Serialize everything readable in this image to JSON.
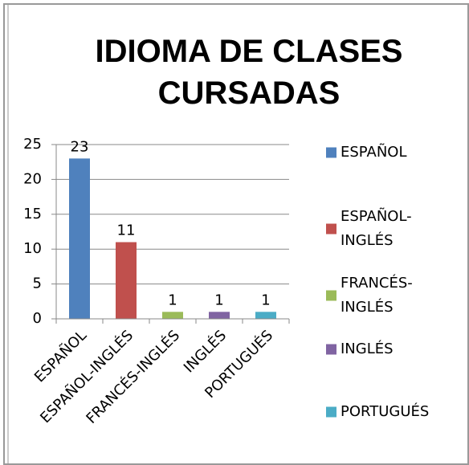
{
  "chart_data": {
    "type": "bar",
    "title": "IDIOMA DE CLASES CURSADAS",
    "categories": [
      "ESPAÑOL",
      "ESPAÑOL-INGLÉS",
      "FRANCÉS-INGLÉS",
      "INGLÉS",
      "PORTUGUÉS"
    ],
    "values": [
      23,
      11,
      1,
      1,
      1
    ],
    "colors": [
      "#4f81bd",
      "#c0504d",
      "#9bbb59",
      "#8064a2",
      "#4bacc6"
    ],
    "ylim": [
      0,
      25
    ],
    "yticks": [
      0,
      5,
      10,
      15,
      20,
      25
    ],
    "grid": true,
    "legend": "right"
  }
}
